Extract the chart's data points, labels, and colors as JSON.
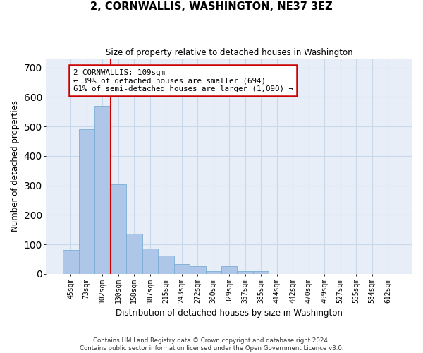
{
  "title": "2, CORNWALLIS, WASHINGTON, NE37 3EZ",
  "subtitle": "Size of property relative to detached houses in Washington",
  "xlabel": "Distribution of detached houses by size in Washington",
  "ylabel": "Number of detached properties",
  "footer_line1": "Contains HM Land Registry data © Crown copyright and database right 2024.",
  "footer_line2": "Contains public sector information licensed under the Open Government Licence v3.0.",
  "bar_color": "#aec6e8",
  "bar_edge_color": "#7aadd4",
  "grid_color": "#c8d8e8",
  "background_color": "#e8eef8",
  "annotation_box_color": "#cc0000",
  "annotation_text_line1": "2 CORNWALLIS: 109sqm",
  "annotation_text_line2": "← 39% of detached houses are smaller (694)",
  "annotation_text_line3": "61% of semi-detached houses are larger (1,090) →",
  "red_line_x": 2.5,
  "categories": [
    "45sqm",
    "73sqm",
    "102sqm",
    "130sqm",
    "158sqm",
    "187sqm",
    "215sqm",
    "243sqm",
    "272sqm",
    "300sqm",
    "329sqm",
    "357sqm",
    "385sqm",
    "414sqm",
    "442sqm",
    "470sqm",
    "499sqm",
    "527sqm",
    "555sqm",
    "584sqm",
    "612sqm"
  ],
  "values": [
    82,
    490,
    570,
    305,
    135,
    85,
    62,
    32,
    27,
    10,
    27,
    10,
    10,
    0,
    0,
    0,
    0,
    0,
    0,
    0,
    0
  ],
  "ylim": [
    0,
    730
  ],
  "yticks": [
    0,
    100,
    200,
    300,
    400,
    500,
    600,
    700
  ]
}
